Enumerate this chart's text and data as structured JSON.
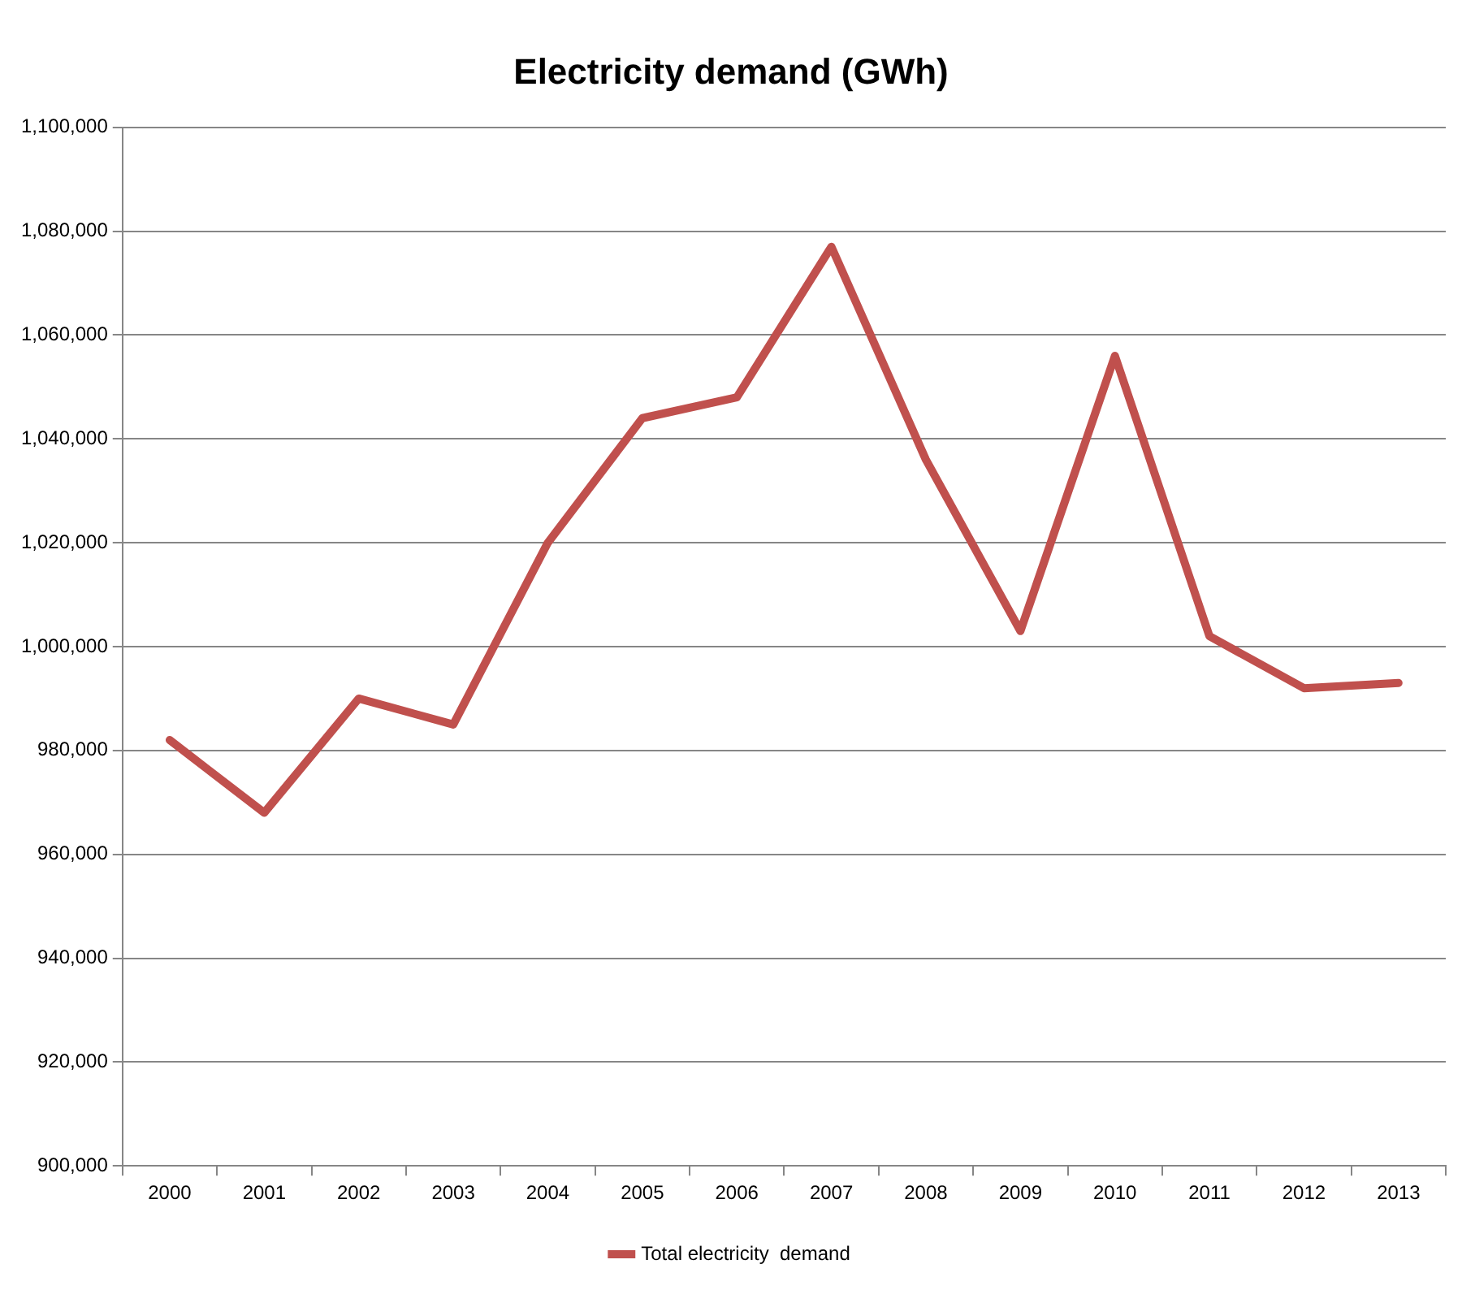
{
  "chart_data": {
    "type": "line",
    "title": "Electricity demand (GWh)",
    "categories": [
      "2000",
      "2001",
      "2002",
      "2003",
      "2004",
      "2005",
      "2006",
      "2007",
      "2008",
      "2009",
      "2010",
      "2011",
      "2012",
      "2013"
    ],
    "series": [
      {
        "name": "Total electricity  demand",
        "color": "#c0504d",
        "values": [
          982000,
          968000,
          990000,
          985000,
          1020000,
          1044000,
          1048000,
          1077000,
          1036000,
          1003000,
          1056000,
          1002000,
          992000,
          993000
        ]
      }
    ],
    "ylim": [
      900000,
      1100000
    ],
    "yticks": [
      {
        "value": 900000,
        "label": "900,000"
      },
      {
        "value": 920000,
        "label": "920,000"
      },
      {
        "value": 940000,
        "label": "940,000"
      },
      {
        "value": 960000,
        "label": "960,000"
      },
      {
        "value": 980000,
        "label": "980,000"
      },
      {
        "value": 1000000,
        "label": "1,000,000"
      },
      {
        "value": 1020000,
        "label": "1,020,000"
      },
      {
        "value": 1040000,
        "label": "1,040,000"
      },
      {
        "value": 1060000,
        "label": "1,060,000"
      },
      {
        "value": 1080000,
        "label": "1,080,000"
      },
      {
        "value": 1100000,
        "label": "1,100,000"
      }
    ],
    "grid": "y",
    "legend": "bottom",
    "marker": "none",
    "line_style": "solid"
  }
}
